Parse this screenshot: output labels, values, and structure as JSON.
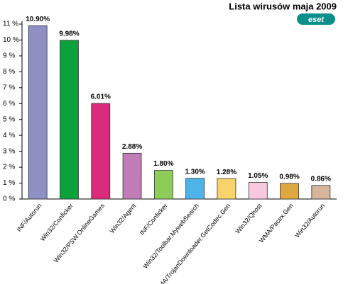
{
  "chart_data": {
    "type": "bar",
    "title": "Lista wirusów maja 2009",
    "logo": "eset",
    "categories": [
      "INF/Autorun",
      "Win32/Conficker",
      "Win32/PSW.OnlineGames",
      "Win32/Agent",
      "INF/Conficker",
      "Win32/Toolbar.MywebSearch",
      "WMA/TrojanDownloader.GetCodec.Gen",
      "Win32/Qhost",
      "WMA/Pacex.Gen",
      "Win32/Autorun"
    ],
    "values": [
      10.9,
      9.98,
      6.01,
      2.88,
      1.8,
      1.3,
      1.28,
      1.05,
      0.98,
      0.86
    ],
    "value_labels": [
      "10.90%",
      "9.98%",
      "6.01%",
      "2.88%",
      "1.80%",
      "1.30%",
      "1.28%",
      "1.05%",
      "0.98%",
      "0.86%"
    ],
    "colors": [
      "#8e8fc2",
      "#0ba23c",
      "#d92a7c",
      "#c07db6",
      "#8dcb5a",
      "#4db3e8",
      "#f7d36a",
      "#f8c8df",
      "#dfa73f",
      "#d5b59b"
    ],
    "ylim": [
      0,
      11
    ],
    "yticks": [
      {
        "value": 0,
        "label": "0 %"
      },
      {
        "value": 1,
        "label": "1 %"
      },
      {
        "value": 2,
        "label": "2 %"
      },
      {
        "value": 3,
        "label": "3 %"
      },
      {
        "value": 4,
        "label": "4 %"
      },
      {
        "value": 5,
        "label": "5 %"
      },
      {
        "value": 6,
        "label": "6 %"
      },
      {
        "value": 7,
        "label": "7 %"
      },
      {
        "value": 8,
        "label": "8 %"
      },
      {
        "value": 9,
        "label": "9 %"
      },
      {
        "value": 10,
        "label": "10 %"
      },
      {
        "value": 11,
        "label": "11 %"
      }
    ],
    "grid": false
  }
}
